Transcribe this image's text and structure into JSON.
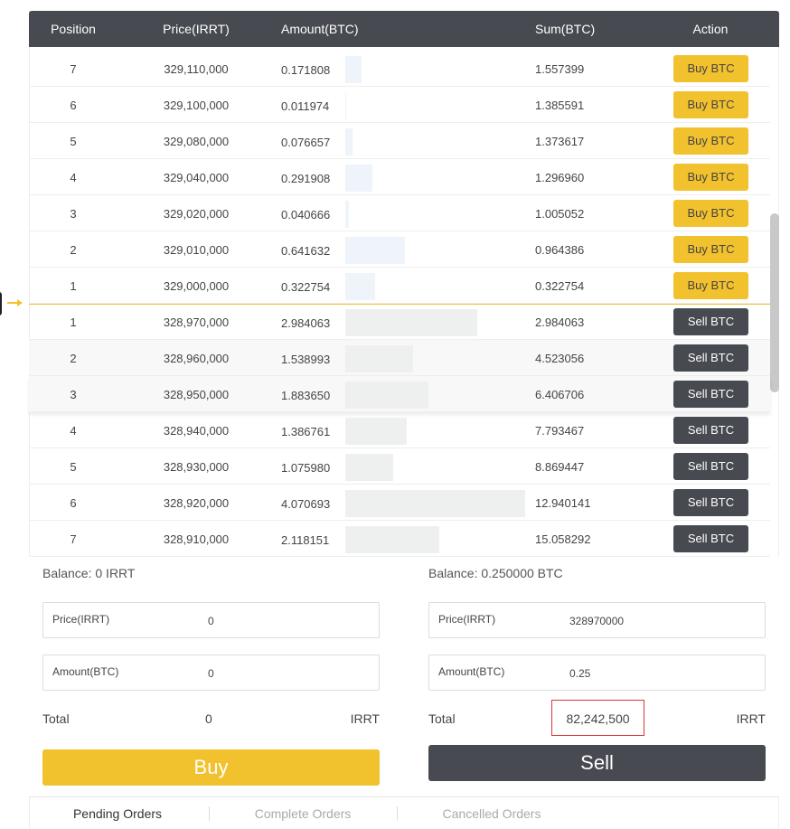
{
  "header": {
    "columns": [
      "Position",
      "Price(IRRT)",
      "Amount(BTC)",
      "Sum(BTC)",
      "Action"
    ]
  },
  "asks": [
    {
      "position": "7",
      "price": "329,110,000",
      "amount": "0.171808",
      "sum": "1.557399",
      "action": "Buy BTC"
    },
    {
      "position": "6",
      "price": "329,100,000",
      "amount": "0.011974",
      "sum": "1.385591",
      "action": "Buy BTC"
    },
    {
      "position": "5",
      "price": "329,080,000",
      "amount": "0.076657",
      "sum": "1.373617",
      "action": "Buy BTC"
    },
    {
      "position": "4",
      "price": "329,040,000",
      "amount": "0.291908",
      "sum": "1.296960",
      "action": "Buy BTC"
    },
    {
      "position": "3",
      "price": "329,020,000",
      "amount": "0.040666",
      "sum": "1.005052",
      "action": "Buy BTC"
    },
    {
      "position": "2",
      "price": "329,010,000",
      "amount": "0.641632",
      "sum": "0.964386",
      "action": "Buy BTC"
    },
    {
      "position": "1",
      "price": "329,000,000",
      "amount": "0.322754",
      "sum": "0.322754",
      "action": "Buy BTC"
    }
  ],
  "bids": [
    {
      "position": "1",
      "price": "328,970,000",
      "amount": "2.984063",
      "sum": "2.984063",
      "action": "Sell BTC"
    },
    {
      "position": "2",
      "price": "328,960,000",
      "amount": "1.538993",
      "sum": "4.523056",
      "action": "Sell BTC"
    },
    {
      "position": "3",
      "price": "328,950,000",
      "amount": "1.883650",
      "sum": "6.406706",
      "action": "Sell BTC"
    },
    {
      "position": "4",
      "price": "328,940,000",
      "amount": "1.386761",
      "sum": "7.793467",
      "action": "Sell BTC"
    },
    {
      "position": "5",
      "price": "328,930,000",
      "amount": "1.075980",
      "sum": "8.869447",
      "action": "Sell BTC"
    },
    {
      "position": "6",
      "price": "328,920,000",
      "amount": "4.070693",
      "sum": "12.940141",
      "action": "Sell BTC"
    },
    {
      "position": "7",
      "price": "328,910,000",
      "amount": "2.118151",
      "sum": "15.058292",
      "action": "Sell BTC"
    }
  ],
  "buy_form": {
    "balance": "Balance: 0 IRRT",
    "price_label": "Price(IRRT)",
    "price_value": "0",
    "amount_label": "Amount(BTC)",
    "amount_value": "0",
    "total_label": "Total",
    "total_value": "0",
    "total_unit": "IRRT",
    "button": "Buy"
  },
  "sell_form": {
    "balance": "Balance: 0.250000 BTC",
    "price_label": "Price(IRRT)",
    "price_value": "328970000",
    "amount_label": "Amount(BTC)",
    "amount_value": "0.25",
    "total_label": "Total",
    "total_value": "82,242,500",
    "total_unit": "IRRT",
    "button": "Sell"
  },
  "tabs": [
    "Pending Orders",
    "Complete Orders",
    "Cancelled Orders"
  ]
}
